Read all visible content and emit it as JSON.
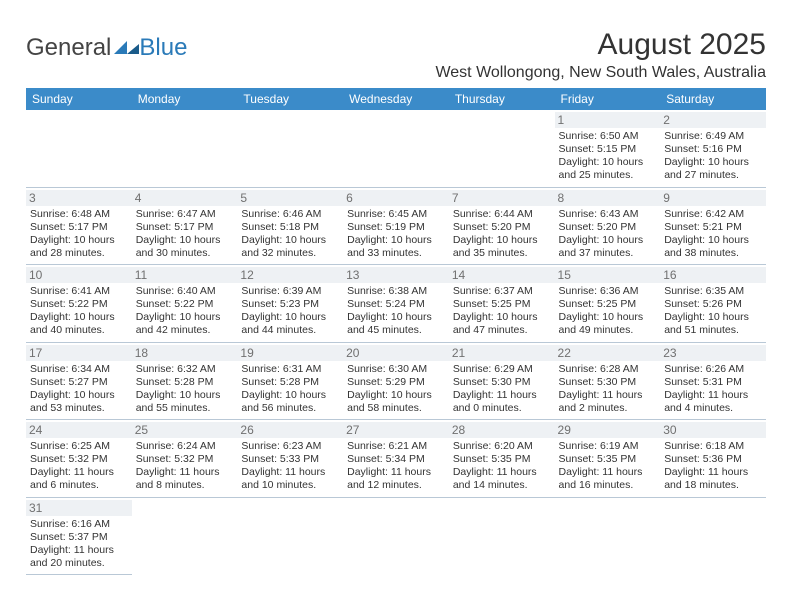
{
  "logo": {
    "text1": "General",
    "text2": "Blue"
  },
  "title": "August 2025",
  "location": "West Wollongong, New South Wales, Australia",
  "header_bg": "#3b8bc9",
  "header_fg": "#ffffff",
  "daynum_bg": "#eef1f4",
  "daynum_fg": "#707070",
  "border_color": "#b9c8d6",
  "font_size_body": 10.5,
  "font_size_daynum": 12,
  "font_size_title": 30,
  "font_size_location": 16,
  "daynames": [
    "Sunday",
    "Monday",
    "Tuesday",
    "Wednesday",
    "Thursday",
    "Friday",
    "Saturday"
  ],
  "weeks": [
    [
      null,
      null,
      null,
      null,
      null,
      {
        "n": "1",
        "sr": "6:50 AM",
        "ss": "5:15 PM",
        "dh": "10",
        "dm": "25"
      },
      {
        "n": "2",
        "sr": "6:49 AM",
        "ss": "5:16 PM",
        "dh": "10",
        "dm": "27"
      }
    ],
    [
      {
        "n": "3",
        "sr": "6:48 AM",
        "ss": "5:17 PM",
        "dh": "10",
        "dm": "28"
      },
      {
        "n": "4",
        "sr": "6:47 AM",
        "ss": "5:17 PM",
        "dh": "10",
        "dm": "30"
      },
      {
        "n": "5",
        "sr": "6:46 AM",
        "ss": "5:18 PM",
        "dh": "10",
        "dm": "32"
      },
      {
        "n": "6",
        "sr": "6:45 AM",
        "ss": "5:19 PM",
        "dh": "10",
        "dm": "33"
      },
      {
        "n": "7",
        "sr": "6:44 AM",
        "ss": "5:20 PM",
        "dh": "10",
        "dm": "35"
      },
      {
        "n": "8",
        "sr": "6:43 AM",
        "ss": "5:20 PM",
        "dh": "10",
        "dm": "37"
      },
      {
        "n": "9",
        "sr": "6:42 AM",
        "ss": "5:21 PM",
        "dh": "10",
        "dm": "38"
      }
    ],
    [
      {
        "n": "10",
        "sr": "6:41 AM",
        "ss": "5:22 PM",
        "dh": "10",
        "dm": "40"
      },
      {
        "n": "11",
        "sr": "6:40 AM",
        "ss": "5:22 PM",
        "dh": "10",
        "dm": "42"
      },
      {
        "n": "12",
        "sr": "6:39 AM",
        "ss": "5:23 PM",
        "dh": "10",
        "dm": "44"
      },
      {
        "n": "13",
        "sr": "6:38 AM",
        "ss": "5:24 PM",
        "dh": "10",
        "dm": "45"
      },
      {
        "n": "14",
        "sr": "6:37 AM",
        "ss": "5:25 PM",
        "dh": "10",
        "dm": "47"
      },
      {
        "n": "15",
        "sr": "6:36 AM",
        "ss": "5:25 PM",
        "dh": "10",
        "dm": "49"
      },
      {
        "n": "16",
        "sr": "6:35 AM",
        "ss": "5:26 PM",
        "dh": "10",
        "dm": "51"
      }
    ],
    [
      {
        "n": "17",
        "sr": "6:34 AM",
        "ss": "5:27 PM",
        "dh": "10",
        "dm": "53"
      },
      {
        "n": "18",
        "sr": "6:32 AM",
        "ss": "5:28 PM",
        "dh": "10",
        "dm": "55"
      },
      {
        "n": "19",
        "sr": "6:31 AM",
        "ss": "5:28 PM",
        "dh": "10",
        "dm": "56"
      },
      {
        "n": "20",
        "sr": "6:30 AM",
        "ss": "5:29 PM",
        "dh": "10",
        "dm": "58"
      },
      {
        "n": "21",
        "sr": "6:29 AM",
        "ss": "5:30 PM",
        "dh": "11",
        "dm": "0"
      },
      {
        "n": "22",
        "sr": "6:28 AM",
        "ss": "5:30 PM",
        "dh": "11",
        "dm": "2"
      },
      {
        "n": "23",
        "sr": "6:26 AM",
        "ss": "5:31 PM",
        "dh": "11",
        "dm": "4"
      }
    ],
    [
      {
        "n": "24",
        "sr": "6:25 AM",
        "ss": "5:32 PM",
        "dh": "11",
        "dm": "6"
      },
      {
        "n": "25",
        "sr": "6:24 AM",
        "ss": "5:32 PM",
        "dh": "11",
        "dm": "8"
      },
      {
        "n": "26",
        "sr": "6:23 AM",
        "ss": "5:33 PM",
        "dh": "11",
        "dm": "10"
      },
      {
        "n": "27",
        "sr": "6:21 AM",
        "ss": "5:34 PM",
        "dh": "11",
        "dm": "12"
      },
      {
        "n": "28",
        "sr": "6:20 AM",
        "ss": "5:35 PM",
        "dh": "11",
        "dm": "14"
      },
      {
        "n": "29",
        "sr": "6:19 AM",
        "ss": "5:35 PM",
        "dh": "11",
        "dm": "16"
      },
      {
        "n": "30",
        "sr": "6:18 AM",
        "ss": "5:36 PM",
        "dh": "11",
        "dm": "18"
      }
    ],
    [
      {
        "n": "31",
        "sr": "6:16 AM",
        "ss": "5:37 PM",
        "dh": "11",
        "dm": "20"
      },
      null,
      null,
      null,
      null,
      null,
      null
    ]
  ]
}
